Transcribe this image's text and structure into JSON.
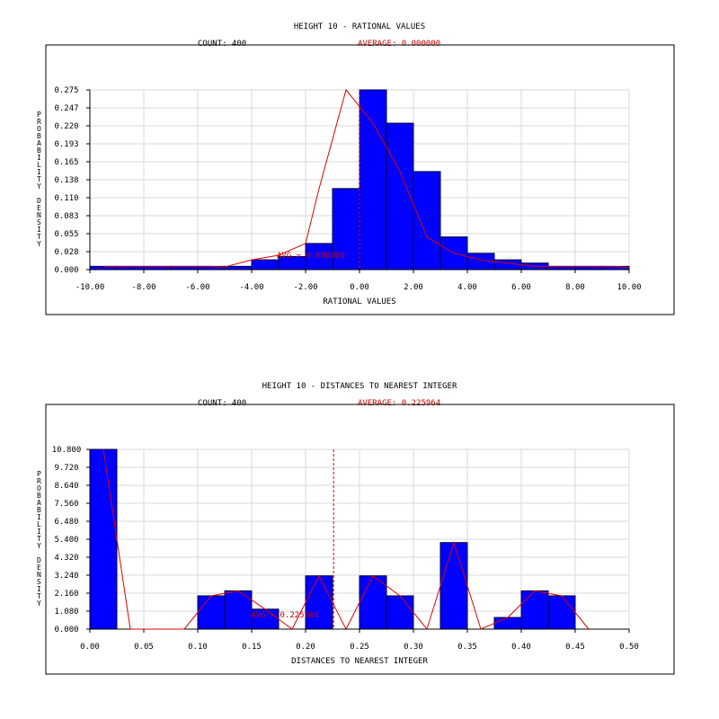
{
  "colors": {
    "bar": "#0000ff",
    "bar_edge": "#000033",
    "curve": "#dd0000",
    "grid": "#d8d8d8",
    "frame": "#000000"
  },
  "chart_data": [
    {
      "type": "bar",
      "title": "HEIGHT 10 - RATIONAL VALUES",
      "count_label": "COUNT: 400",
      "average_label": "AVERAGE: 0.000000",
      "avg_annotation": "AVG = 0.000000",
      "avg_value": 0.0,
      "xlabel": "RATIONAL VALUES",
      "ylabel": "PROBABILITY DENSITY",
      "xlim": [
        -10,
        10
      ],
      "ylim": [
        0,
        0.275
      ],
      "x_ticks": [
        "-10.00",
        "-8.00",
        "-6.00",
        "-4.00",
        "-2.00",
        "0.00",
        "2.00",
        "4.00",
        "6.00",
        "8.00",
        "10.00"
      ],
      "x_tick_values": [
        -10,
        -8,
        -6,
        -4,
        -2,
        0,
        2,
        4,
        6,
        8,
        10
      ],
      "y_ticks": [
        "0.000",
        "0.028",
        "0.055",
        "0.083",
        "0.110",
        "0.138",
        "0.165",
        "0.193",
        "0.220",
        "0.247",
        "0.275"
      ],
      "y_tick_values": [
        0,
        0.0275,
        0.055,
        0.0825,
        0.11,
        0.1375,
        0.165,
        0.1925,
        0.22,
        0.2475,
        0.275
      ],
      "bin_edges": [
        -10,
        -9,
        -8,
        -7,
        -6,
        -5,
        -4,
        -3,
        -2,
        -1,
        0,
        1,
        2,
        3,
        4,
        5,
        6,
        7,
        8,
        9,
        10
      ],
      "values": [
        0.005,
        0.005,
        0.005,
        0.005,
        0.005,
        0.005,
        0.015,
        0.02,
        0.04,
        0.124,
        0.275,
        0.224,
        0.15,
        0.05,
        0.025,
        0.015,
        0.01,
        0.005,
        0.005,
        0.005
      ],
      "curve": [
        {
          "x": -9.5,
          "y": 0.005
        },
        {
          "x": -8.5,
          "y": 0.005
        },
        {
          "x": -7.5,
          "y": 0.005
        },
        {
          "x": -6.5,
          "y": 0.005
        },
        {
          "x": -5.5,
          "y": 0.005
        },
        {
          "x": -5.0,
          "y": 0.004
        },
        {
          "x": -4.0,
          "y": 0.015
        },
        {
          "x": -3.0,
          "y": 0.022
        },
        {
          "x": -2.0,
          "y": 0.04
        },
        {
          "x": -1.5,
          "y": 0.124
        },
        {
          "x": -0.5,
          "y": 0.275
        },
        {
          "x": 0.5,
          "y": 0.224
        },
        {
          "x": 1.5,
          "y": 0.15
        },
        {
          "x": 2.5,
          "y": 0.05
        },
        {
          "x": 3.5,
          "y": 0.025
        },
        {
          "x": 4.5,
          "y": 0.015
        },
        {
          "x": 5.5,
          "y": 0.01
        },
        {
          "x": 6.5,
          "y": 0.005
        },
        {
          "x": 7.5,
          "y": 0.005
        },
        {
          "x": 8.5,
          "y": 0.005
        },
        {
          "x": 9.5,
          "y": 0.005
        },
        {
          "x": 10.0,
          "y": 0.003
        }
      ],
      "grid": true
    },
    {
      "type": "bar",
      "title": "HEIGHT 10 - DISTANCES TO NEAREST INTEGER",
      "count_label": "COUNT: 400",
      "average_label": "AVERAGE: 0.225964",
      "avg_annotation": "AVG = 0.225964",
      "avg_value": 0.225964,
      "xlabel": "DISTANCES TO NEAREST INTEGER",
      "ylabel": "PROBABILITY DENSITY",
      "xlim": [
        0,
        0.5
      ],
      "ylim": [
        0,
        10.8
      ],
      "x_ticks": [
        "0.00",
        "0.05",
        "0.10",
        "0.15",
        "0.20",
        "0.25",
        "0.30",
        "0.35",
        "0.40",
        "0.45",
        "0.50"
      ],
      "x_tick_values": [
        0,
        0.05,
        0.1,
        0.15,
        0.2,
        0.25,
        0.3,
        0.35,
        0.4,
        0.45,
        0.5
      ],
      "y_ticks": [
        "0.000",
        "1.080",
        "2.160",
        "3.240",
        "4.320",
        "5.400",
        "6.480",
        "7.560",
        "8.640",
        "9.720",
        "10.800"
      ],
      "y_tick_values": [
        0,
        1.08,
        2.16,
        3.24,
        4.32,
        5.4,
        6.48,
        7.56,
        8.64,
        9.72,
        10.8
      ],
      "bin_edges": [
        0,
        0.025,
        0.05,
        0.075,
        0.1,
        0.125,
        0.15,
        0.175,
        0.2,
        0.225,
        0.25,
        0.275,
        0.3,
        0.325,
        0.35,
        0.375,
        0.4,
        0.425,
        0.45,
        0.475,
        0.5
      ],
      "values": [
        10.8,
        0,
        0,
        0,
        2.0,
        2.3,
        1.2,
        0,
        3.2,
        0,
        3.2,
        2.0,
        0,
        5.2,
        0,
        0.7,
        2.3,
        2.0,
        0,
        0
      ],
      "curve": [
        {
          "x": 0.0125,
          "y": 10.8
        },
        {
          "x": 0.0375,
          "y": 0
        },
        {
          "x": 0.0625,
          "y": 0
        },
        {
          "x": 0.0875,
          "y": 0
        },
        {
          "x": 0.1125,
          "y": 2.0
        },
        {
          "x": 0.1375,
          "y": 2.3
        },
        {
          "x": 0.1625,
          "y": 1.2
        },
        {
          "x": 0.1875,
          "y": 0
        },
        {
          "x": 0.2125,
          "y": 3.2
        },
        {
          "x": 0.2375,
          "y": 0
        },
        {
          "x": 0.2625,
          "y": 3.2
        },
        {
          "x": 0.2875,
          "y": 2.0
        },
        {
          "x": 0.3125,
          "y": 0
        },
        {
          "x": 0.3375,
          "y": 5.2
        },
        {
          "x": 0.3625,
          "y": 0
        },
        {
          "x": 0.3875,
          "y": 0.7
        },
        {
          "x": 0.4125,
          "y": 2.3
        },
        {
          "x": 0.4375,
          "y": 2.0
        },
        {
          "x": 0.4625,
          "y": 0
        }
      ],
      "grid": true
    }
  ]
}
